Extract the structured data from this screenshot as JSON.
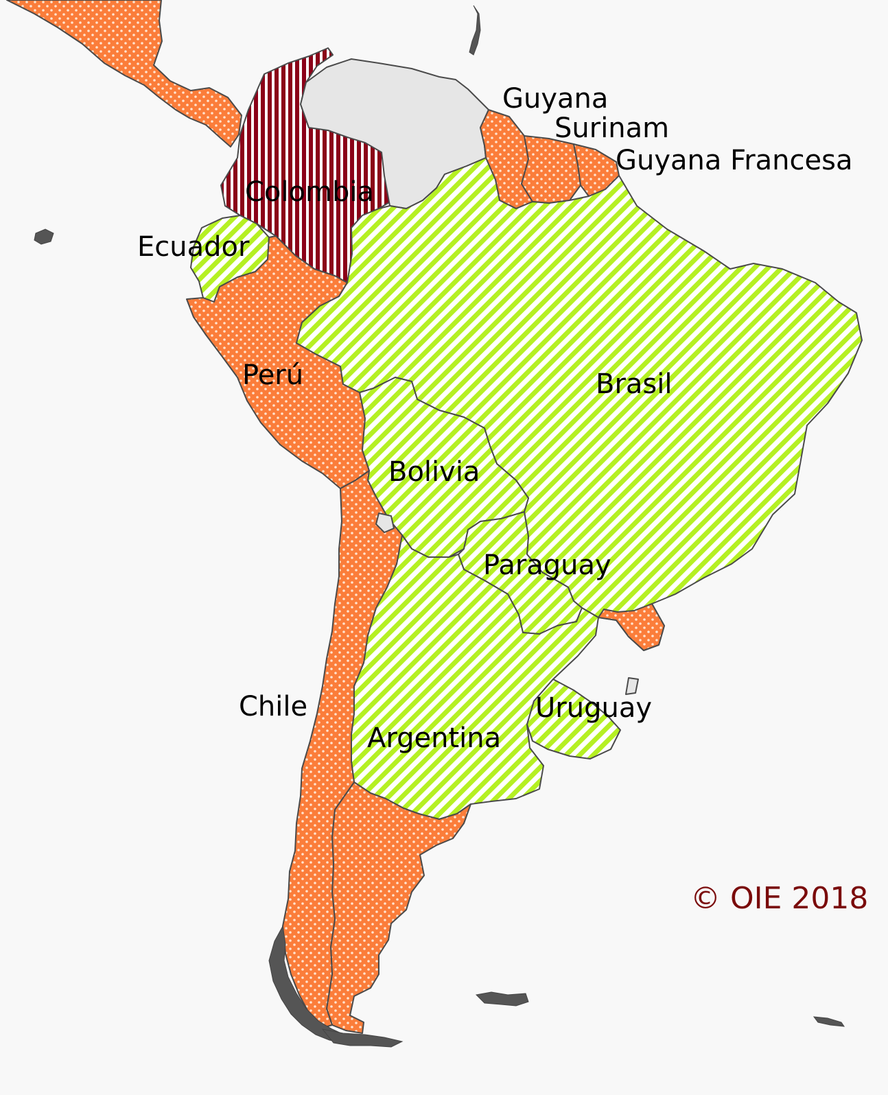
{
  "colors": {
    "background": "#f8f8f8",
    "orange": "#fb7d3a",
    "green": "#b5f023",
    "dark_red": "#8b0018",
    "grey": "#e6e6e6",
    "border": "#4a4a4a",
    "copyright": "#7a0b0b"
  },
  "labels": {
    "guyana": "Guyana",
    "surinam": "Surinam",
    "guyana_francesa": "Guyana Francesa",
    "colombia": "Colombia",
    "ecuador": "Ecuador",
    "peru": "Perú",
    "brasil": "Brasil",
    "bolivia": "Bolivia",
    "paraguay": "Paraguay",
    "chile": "Chile",
    "uruguay": "Uruguay",
    "argentina": "Argentina"
  },
  "copyright": "© OIE 2018"
}
